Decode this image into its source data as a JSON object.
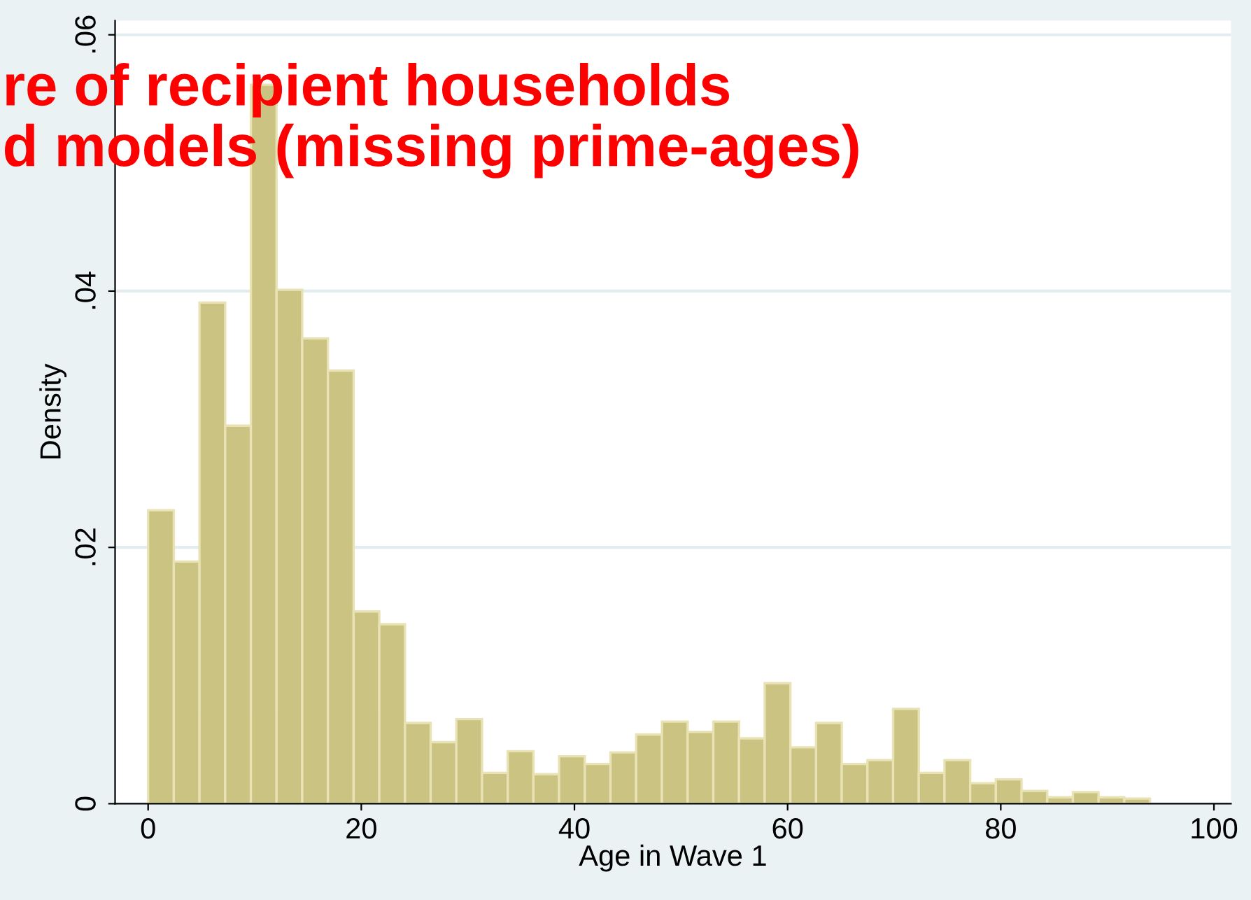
{
  "chart_data": {
    "type": "histogram",
    "xlabel": "Age in Wave 1",
    "ylabel": "Density",
    "bins": [
      0,
      2.41,
      4.82,
      7.23,
      9.64,
      12.05,
      14.46,
      16.87,
      19.28,
      21.69,
      24.1,
      26.51,
      28.92,
      31.33,
      33.74,
      36.15,
      38.56,
      40.97,
      43.38,
      45.79,
      48.21,
      50.62,
      53.03,
      55.44,
      57.85,
      60.26,
      62.67,
      65.08,
      67.49,
      69.9,
      72.31,
      74.72,
      77.13,
      79.54,
      81.95,
      84.36,
      86.77,
      89.18,
      91.59,
      94.0
    ],
    "values": [
      0.0229,
      0.0189,
      0.0391,
      0.0295,
      0.0561,
      0.0401,
      0.0363,
      0.0338,
      0.015,
      0.014,
      0.0063,
      0.0048,
      0.0066,
      0.0024,
      0.0041,
      0.0023,
      0.0037,
      0.0031,
      0.004,
      0.0054,
      0.0064,
      0.0056,
      0.0064,
      0.0051,
      0.0094,
      0.0044,
      0.0063,
      0.0031,
      0.0034,
      0.0074,
      0.0024,
      0.0034,
      0.0016,
      0.0019,
      0.001,
      0.0005,
      0.0009,
      0.0005,
      0.0004
    ],
    "color": "#cbc382",
    "xlim": [
      -3.1,
      101.6
    ],
    "ylim": [
      0,
      0.0611
    ],
    "xticks": [
      0,
      20,
      40,
      60,
      80,
      100
    ],
    "yticks": [
      {
        "value": 0,
        "label": "0"
      },
      {
        "value": 0.02,
        "label": ".02"
      },
      {
        "value": 0.04,
        "label": ".04"
      },
      {
        "value": 0.06,
        "label": ".06"
      }
    ],
    "grid": "y",
    "annotations": [
      "re of recipient households\nd models (missing prime-ages)"
    ]
  }
}
